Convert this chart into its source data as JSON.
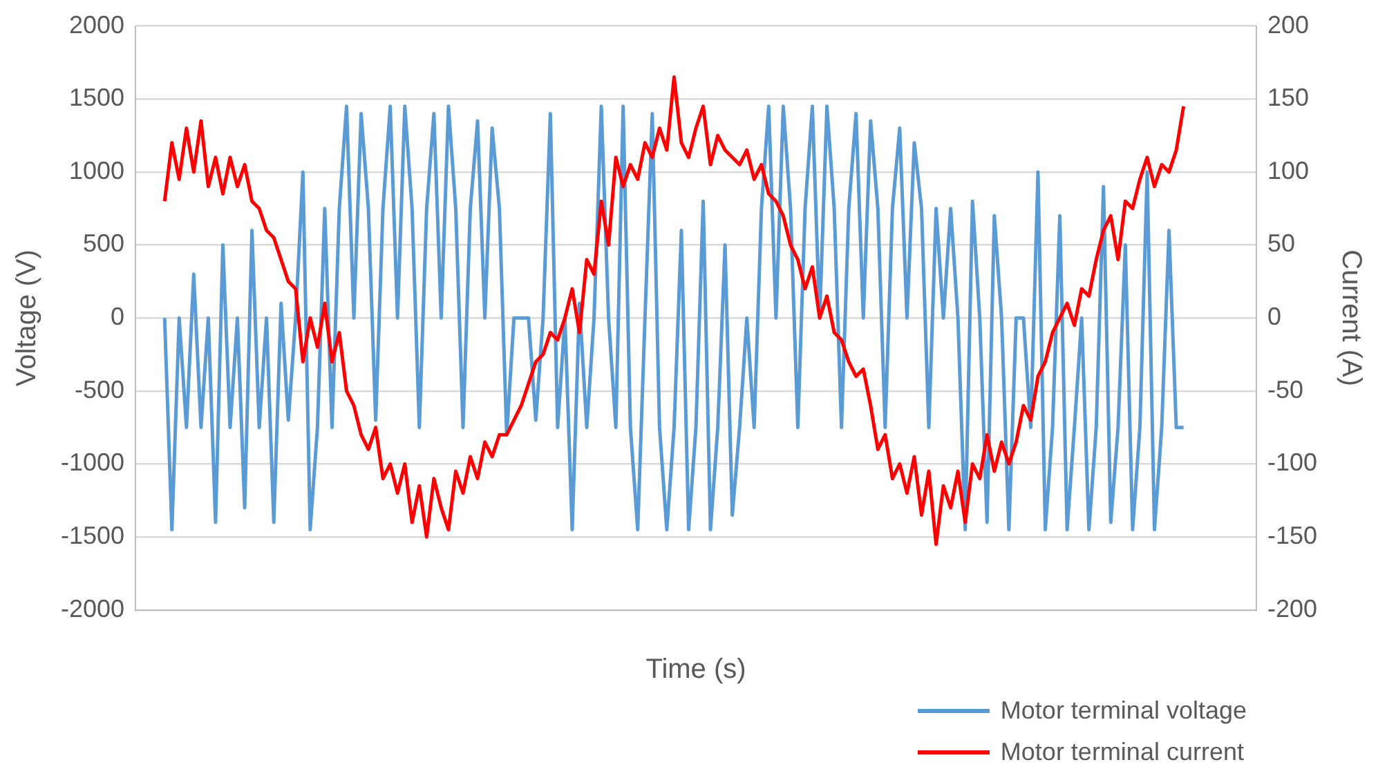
{
  "chart_data": {
    "type": "line",
    "xlabel": "Time (s)",
    "ylabel": "Voltage (V)",
    "y2label": "Current (A)",
    "categories": [
      null,
      null,
      null,
      null,
      null,
      null,
      null,
      null,
      null,
      null,
      null,
      null,
      null,
      null,
      null,
      null,
      null,
      null,
      null,
      null,
      null,
      null,
      null,
      null,
      null,
      null,
      null,
      null,
      null,
      null,
      null,
      null,
      null,
      null,
      null,
      null,
      null,
      null,
      null,
      null,
      null,
      null,
      null,
      null,
      null,
      null,
      null,
      null,
      null,
      null,
      null,
      null,
      null,
      null,
      null,
      null,
      null,
      null,
      null,
      null,
      null,
      null,
      null,
      null,
      null,
      null,
      null,
      null,
      null,
      null,
      null,
      null,
      null,
      null,
      null,
      null,
      null,
      null,
      null,
      null,
      null,
      null,
      null,
      null,
      null,
      null,
      null,
      null,
      null,
      null,
      null,
      null,
      null,
      null,
      null,
      null,
      null,
      null,
      null,
      null,
      null,
      null,
      null,
      null,
      null,
      null,
      null,
      null,
      null,
      null,
      null,
      null,
      null,
      null,
      null,
      null,
      null,
      null,
      null,
      null,
      null,
      null,
      null,
      null,
      null,
      null,
      null,
      null,
      null,
      null,
      null,
      null,
      null,
      null,
      null,
      null,
      null,
      null,
      null,
      null,
      null,
      null,
      null,
      null,
      null,
      null,
      null,
      null,
      null,
      null,
      null,
      null,
      null,
      null,
      null
    ],
    "ylim": [
      -2000,
      2000
    ],
    "yticks": [
      -2000,
      -1500,
      -1000,
      -500,
      0,
      500,
      1000,
      1500,
      2000
    ],
    "y2lim": [
      -200,
      200
    ],
    "y2ticks": [
      -200,
      -150,
      -100,
      -50,
      0,
      50,
      100,
      150,
      200
    ],
    "grid": "y",
    "legend": "bottom right",
    "marker": "none",
    "line_style": "solid",
    "series": [
      {
        "name": "Motor terminal voltage",
        "color": "#5b9bd5",
        "axis": "y",
        "values": [
          null,
          null,
          null,
          null,
          0,
          -1450,
          0,
          -750,
          300,
          -750,
          0,
          -1400,
          500,
          -750,
          0,
          -1300,
          600,
          -750,
          0,
          -1400,
          100,
          -700,
          0,
          1000,
          -1450,
          -750,
          750,
          -750,
          750,
          1450,
          0,
          1400,
          750,
          -700,
          750,
          1450,
          0,
          1450,
          750,
          -750,
          750,
          1400,
          0,
          1450,
          750,
          -750,
          750,
          1350,
          0,
          1300,
          750,
          -800,
          0,
          0,
          0,
          -700,
          0,
          1400,
          -750,
          0,
          -1450,
          100,
          -750,
          0,
          1450,
          0,
          -750,
          1450,
          -750,
          -1450,
          0,
          1400,
          -750,
          -1450,
          -750,
          600,
          -1450,
          -750,
          800,
          -1450,
          -750,
          500,
          -1350,
          -750,
          0,
          -750,
          750,
          1450,
          0,
          1450,
          750,
          -750,
          750,
          1450,
          0,
          1450,
          750,
          -750,
          750,
          1400,
          0,
          1350,
          750,
          -750,
          750,
          1300,
          0,
          1200,
          750,
          -750,
          750,
          0,
          750,
          0,
          -1450,
          800,
          0,
          -1400,
          700,
          0,
          -1450,
          0,
          0,
          -750,
          1000,
          -1450,
          -750,
          700,
          -1450,
          -750,
          0,
          -1450,
          -750,
          900,
          -1400,
          -750,
          500,
          -1450,
          -750,
          1000,
          -1450,
          -750,
          600,
          -750,
          -750,
          null,
          null,
          null,
          null,
          null,
          null,
          null,
          null,
          null,
          null
        ]
      },
      {
        "name": "Motor terminal current",
        "color": "#ff0000",
        "axis": "y2",
        "values": [
          null,
          null,
          null,
          null,
          80,
          120,
          95,
          130,
          100,
          135,
          90,
          110,
          85,
          110,
          90,
          105,
          80,
          75,
          60,
          55,
          40,
          25,
          20,
          -30,
          0,
          -20,
          10,
          -30,
          -10,
          -50,
          -60,
          -80,
          -90,
          -75,
          -110,
          -100,
          -120,
          -100,
          -140,
          -115,
          -150,
          -110,
          -130,
          -145,
          -105,
          -120,
          -95,
          -110,
          -85,
          -95,
          -80,
          -80,
          -70,
          -60,
          -45,
          -30,
          -25,
          -10,
          -15,
          0,
          20,
          -10,
          40,
          30,
          80,
          50,
          110,
          90,
          105,
          95,
          120,
          110,
          130,
          115,
          165,
          120,
          110,
          130,
          145,
          105,
          125,
          115,
          110,
          105,
          115,
          95,
          105,
          85,
          80,
          70,
          50,
          40,
          20,
          35,
          0,
          15,
          -10,
          -15,
          -30,
          -40,
          -35,
          -60,
          -90,
          -80,
          -110,
          -100,
          -120,
          -95,
          -135,
          -105,
          -155,
          -115,
          -130,
          -105,
          -140,
          -100,
          -110,
          -80,
          -105,
          -85,
          -100,
          -85,
          -60,
          -70,
          -40,
          -30,
          -10,
          0,
          10,
          -5,
          20,
          15,
          40,
          60,
          70,
          40,
          80,
          75,
          95,
          110,
          90,
          105,
          100,
          115,
          145,
          null,
          null,
          null,
          null,
          null,
          null,
          null,
          null,
          null,
          null
        ]
      }
    ]
  }
}
